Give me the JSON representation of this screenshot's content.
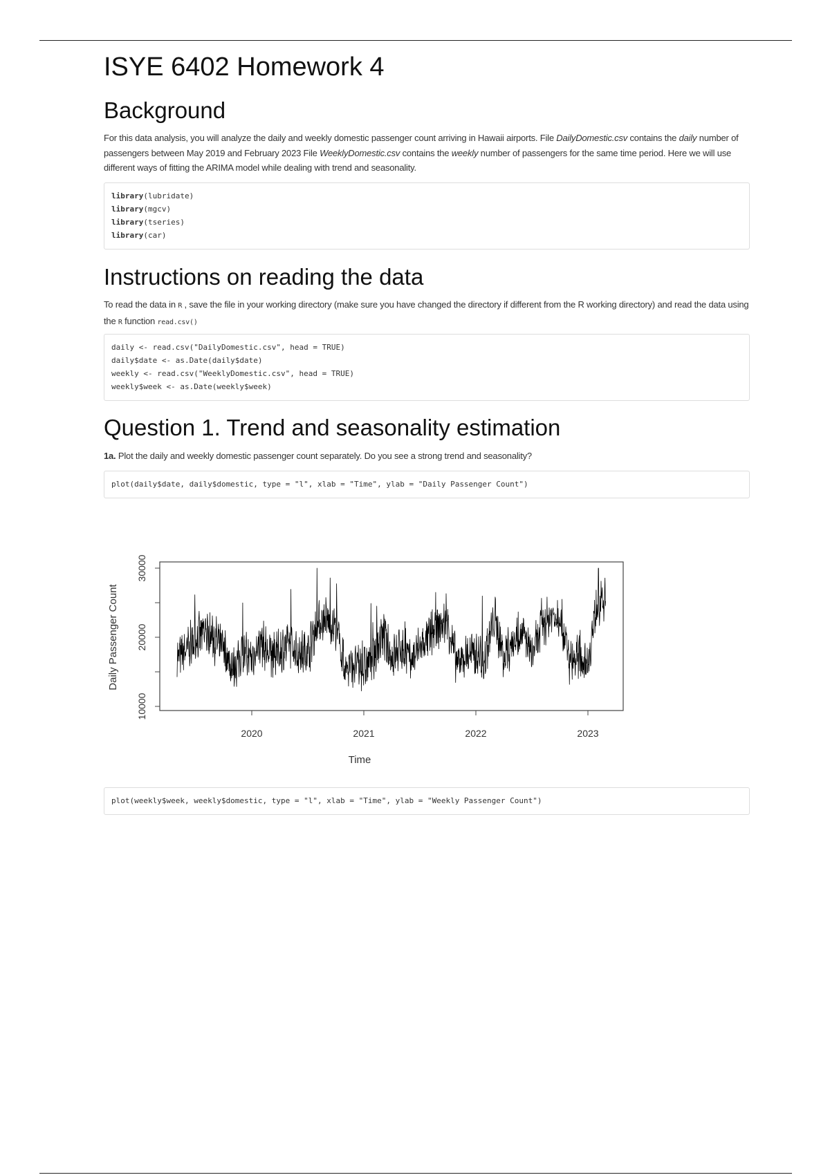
{
  "title": "ISYE 6402 Homework 4",
  "background": {
    "heading": "Background",
    "p1": "For this data analysis, you will analyze the daily and weekly domestic passenger count arriving in Hawaii airports. File ",
    "file1": "DailyDomestic.csv",
    "p2": " contains the ",
    "daily": "daily",
    "p3": " number of passengers between May 2019 and February 2023 File ",
    "file2": "WeeklyDomestic.csv",
    "p4": " contains the ",
    "weekly": "weekly",
    "p5": " number of passengers for the same time period. Here we will use different ways of fitting the ARIMA model while dealing with trend and seasonality.",
    "code": [
      {
        "kw": "library",
        "arg": "(lubridate)"
      },
      {
        "kw": "library",
        "arg": "(mgcv)"
      },
      {
        "kw": "library",
        "arg": "(tseries)"
      },
      {
        "kw": "library",
        "arg": "(car)"
      }
    ]
  },
  "instructions": {
    "heading": "Instructions on reading the data",
    "p1": "To read the data in ",
    "r1": "R",
    "p2": " , save the file in your working directory (make sure you have changed the directory if different from the R working directory) and read the data using the ",
    "r2": "R",
    "p3": " function ",
    "fn": "read.csv()",
    "code": [
      "daily <- read.csv(\"DailyDomestic.csv\", head = TRUE)",
      "daily$date <- as.Date(daily$date)",
      "weekly <- read.csv(\"WeeklyDomestic.csv\", head = TRUE)",
      "weekly$week <- as.Date(weekly$week)"
    ]
  },
  "question1": {
    "heading": "Question 1. Trend and seasonality estimation",
    "q1a_label": "1a.",
    "q1a_text": " Plot the daily and weekly domestic passenger count separately. Do you see a strong trend and seasonality?",
    "code1": "plot(daily$date, daily$domestic, type = \"l\", xlab = \"Time\", ylab = \"Daily Passenger Count\")",
    "code2": "plot(weekly$week, weekly$domestic, type = \"l\", xlab = \"Time\", ylab = \"Weekly Passenger Count\")"
  },
  "chart_data": {
    "type": "line",
    "title": "",
    "xlabel": "Time",
    "ylabel": "Daily Passenger Count",
    "x_ticks": [
      "2020",
      "2021",
      "2022",
      "2023"
    ],
    "y_ticks": [
      "10000",
      "20000",
      "30000"
    ],
    "xlim": [
      "2019-05-01",
      "2023-02-28"
    ],
    "ylim": [
      10000,
      30000
    ],
    "grid": false,
    "line_color": "#000000",
    "approx_monthly_level": {
      "months": [
        "2019-05",
        "2019-06",
        "2019-07",
        "2019-08",
        "2019-09",
        "2019-10",
        "2019-11",
        "2019-12",
        "2020-01",
        "2020-02",
        "2020-03",
        "2020-04",
        "2020-05",
        "2020-06",
        "2020-07",
        "2020-08",
        "2020-09",
        "2020-10",
        "2020-11",
        "2020-12",
        "2021-01",
        "2021-02",
        "2021-03",
        "2021-04",
        "2021-05",
        "2021-06",
        "2021-07",
        "2021-08",
        "2021-09",
        "2021-10",
        "2021-11",
        "2021-12",
        "2022-01",
        "2022-02",
        "2022-03",
        "2022-04",
        "2022-05",
        "2022-06",
        "2022-07",
        "2022-08",
        "2022-09",
        "2022-10",
        "2022-11",
        "2022-12",
        "2023-01",
        "2023-02"
      ],
      "values": [
        17000,
        18000,
        20000,
        20500,
        20000,
        18000,
        15500,
        17500,
        17000,
        19500,
        17000,
        18000,
        19000,
        17500,
        18000,
        22000,
        22500,
        21500,
        15500,
        16000,
        15500,
        17000,
        20500,
        17000,
        18500,
        16500,
        18500,
        20000,
        21500,
        22000,
        16000,
        17500,
        17500,
        17000,
        23000,
        17000,
        19500,
        20500,
        17500,
        21000,
        23000,
        23500,
        16500,
        17000,
        16500,
        25000
      ]
    }
  }
}
